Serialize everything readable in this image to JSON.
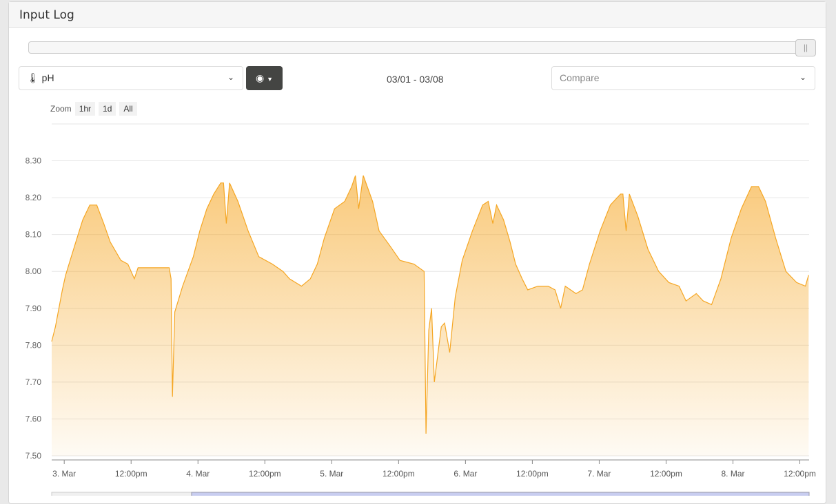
{
  "panel": {
    "title": "Input Log"
  },
  "controls": {
    "sensor_label": "pH",
    "sensor_icon": "thermometer-icon",
    "view_icon": "eye-icon",
    "date_range": "03/01 - 03/08",
    "compare_placeholder": "Compare",
    "slider_handle": "||",
    "slider_value": 1.0
  },
  "zoom": {
    "label": "Zoom",
    "buttons": [
      "1hr",
      "1d",
      "All"
    ]
  },
  "chart_data": {
    "type": "area",
    "color": "#f5a623",
    "ylim": [
      7.5,
      8.4
    ],
    "yticks": [
      "7.50",
      "7.60",
      "7.70",
      "7.80",
      "7.90",
      "8.00",
      "8.10",
      "8.20",
      "8.30"
    ],
    "xlim": [
      "03-02 21:45",
      "03-08 13:40"
    ],
    "xticks": [
      {
        "t": "03-03 00:00",
        "label": "3. Mar"
      },
      {
        "t": "03-03 12:00",
        "label": "12:00pm"
      },
      {
        "t": "03-04 00:00",
        "label": "4. Mar"
      },
      {
        "t": "03-04 12:00",
        "label": "12:00pm"
      },
      {
        "t": "03-05 00:00",
        "label": "5. Mar"
      },
      {
        "t": "03-05 12:00",
        "label": "12:00pm"
      },
      {
        "t": "03-06 00:00",
        "label": "6. Mar"
      },
      {
        "t": "03-06 12:00",
        "label": "12:00pm"
      },
      {
        "t": "03-07 00:00",
        "label": "7. Mar"
      },
      {
        "t": "03-07 12:00",
        "label": "12:00pm"
      },
      {
        "t": "03-08 00:00",
        "label": "8. Mar"
      },
      {
        "t": "03-08 12:00",
        "label": "12:00pm"
      }
    ],
    "grid": true,
    "points": [
      [
        "03-02 21:45",
        7.81
      ],
      [
        "03-02 22:25",
        7.85
      ],
      [
        "03-02 23:40",
        7.95
      ],
      [
        "03-03 00:15",
        7.99
      ],
      [
        "03-03 02:05",
        8.08
      ],
      [
        "03-03 03:20",
        8.14
      ],
      [
        "03-03 04:35",
        8.18
      ],
      [
        "03-03 05:50",
        8.18
      ],
      [
        "03-03 07:05",
        8.13
      ],
      [
        "03-03 08:15",
        8.08
      ],
      [
        "03-03 10:10",
        8.03
      ],
      [
        "03-03 11:25",
        8.02
      ],
      [
        "03-03 12:35",
        7.98
      ],
      [
        "03-03 13:15",
        8.01
      ],
      [
        "03-03 18:50",
        8.01
      ],
      [
        "03-03 19:10",
        7.98
      ],
      [
        "03-03 19:25",
        7.66
      ],
      [
        "03-03 19:50",
        7.89
      ],
      [
        "03-03 21:15",
        7.96
      ],
      [
        "03-03 23:10",
        8.04
      ],
      [
        "03-04 00:20",
        8.11
      ],
      [
        "03-04 01:35",
        8.17
      ],
      [
        "03-04 02:50",
        8.21
      ],
      [
        "03-04 04:05",
        8.24
      ],
      [
        "03-04 04:35",
        8.24
      ],
      [
        "03-04 05:05",
        8.13
      ],
      [
        "03-04 05:40",
        8.24
      ],
      [
        "03-04 07:10",
        8.19
      ],
      [
        "03-04 09:00",
        8.11
      ],
      [
        "03-04 10:55",
        8.04
      ],
      [
        "03-04 13:20",
        8.02
      ],
      [
        "03-04 15:15",
        8.0
      ],
      [
        "03-04 16:25",
        7.98
      ],
      [
        "03-04 18:35",
        7.96
      ],
      [
        "03-04 20:10",
        7.98
      ],
      [
        "03-04 21:25",
        8.02
      ],
      [
        "03-04 22:40",
        8.09
      ],
      [
        "03-05 00:30",
        8.17
      ],
      [
        "03-05 02:20",
        8.19
      ],
      [
        "03-05 03:35",
        8.23
      ],
      [
        "03-05 04:15",
        8.26
      ],
      [
        "03-05 04:50",
        8.17
      ],
      [
        "03-05 05:40",
        8.26
      ],
      [
        "03-05 07:20",
        8.19
      ],
      [
        "03-05 08:30",
        8.11
      ],
      [
        "03-05 10:25",
        8.07
      ],
      [
        "03-05 12:15",
        8.03
      ],
      [
        "03-05 14:45",
        8.02
      ],
      [
        "03-05 16:35",
        8.0
      ],
      [
        "03-05 16:55",
        7.56
      ],
      [
        "03-05 17:25",
        7.84
      ],
      [
        "03-05 17:55",
        7.9
      ],
      [
        "03-05 18:25",
        7.7
      ],
      [
        "03-05 19:40",
        7.85
      ],
      [
        "03-05 20:15",
        7.86
      ],
      [
        "03-05 21:10",
        7.78
      ],
      [
        "03-05 22:10",
        7.93
      ],
      [
        "03-05 23:25",
        8.03
      ],
      [
        "03-06 01:15",
        8.11
      ],
      [
        "03-06 03:05",
        8.18
      ],
      [
        "03-06 04:05",
        8.19
      ],
      [
        "03-06 04:55",
        8.13
      ],
      [
        "03-06 05:35",
        8.18
      ],
      [
        "03-06 06:50",
        8.14
      ],
      [
        "03-06 08:00",
        8.08
      ],
      [
        "03-06 09:00",
        8.02
      ],
      [
        "03-06 10:10",
        7.98
      ],
      [
        "03-06 11:10",
        7.95
      ],
      [
        "03-06 13:00",
        7.96
      ],
      [
        "03-06 14:50",
        7.96
      ],
      [
        "03-06 16:05",
        7.95
      ],
      [
        "03-06 17:05",
        7.9
      ],
      [
        "03-06 17:55",
        7.96
      ],
      [
        "03-06 19:50",
        7.94
      ],
      [
        "03-06 21:00",
        7.95
      ],
      [
        "03-06 22:15",
        8.02
      ],
      [
        "03-07 00:10",
        8.11
      ],
      [
        "03-07 02:00",
        8.18
      ],
      [
        "03-07 03:50",
        8.21
      ],
      [
        "03-07 04:15",
        8.21
      ],
      [
        "03-07 04:50",
        8.11
      ],
      [
        "03-07 05:25",
        8.21
      ],
      [
        "03-07 06:55",
        8.15
      ],
      [
        "03-07 08:45",
        8.06
      ],
      [
        "03-07 10:40",
        8.0
      ],
      [
        "03-07 12:30",
        7.97
      ],
      [
        "03-07 14:20",
        7.96
      ],
      [
        "03-07 15:35",
        7.92
      ],
      [
        "03-07 17:25",
        7.94
      ],
      [
        "03-07 18:40",
        7.92
      ],
      [
        "03-07 20:10",
        7.91
      ],
      [
        "03-07 21:50",
        7.98
      ],
      [
        "03-07 23:40",
        8.09
      ],
      [
        "03-08 01:30",
        8.17
      ],
      [
        "03-08 03:20",
        8.23
      ],
      [
        "03-08 04:35",
        8.23
      ],
      [
        "03-08 05:50",
        8.19
      ],
      [
        "03-08 07:40",
        8.09
      ],
      [
        "03-08 09:30",
        8.0
      ],
      [
        "03-08 11:25",
        7.97
      ],
      [
        "03-08 13:00",
        7.96
      ],
      [
        "03-08 13:35",
        7.99
      ]
    ]
  }
}
